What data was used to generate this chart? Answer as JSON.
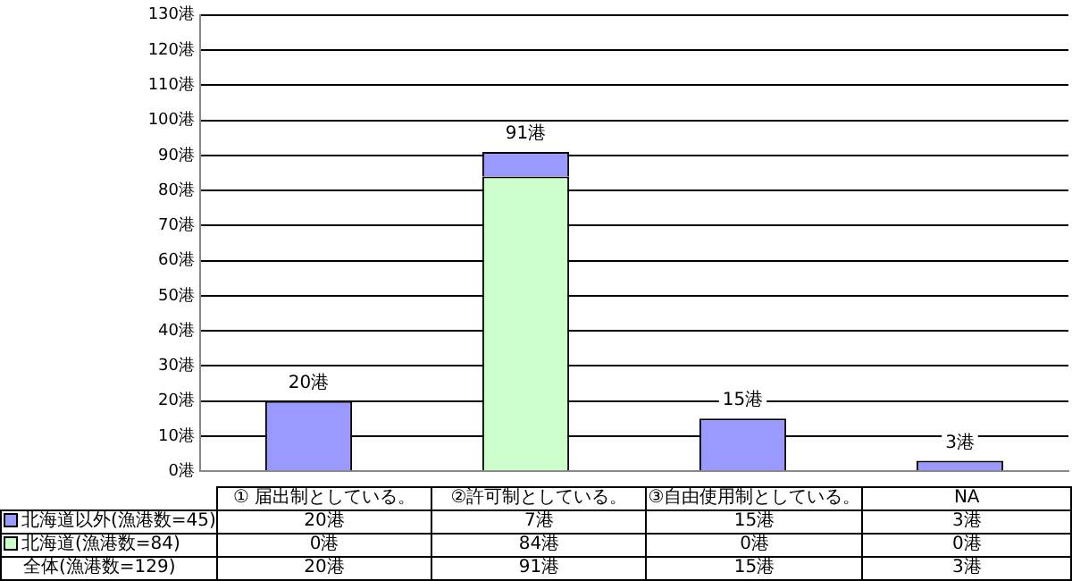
{
  "chart_data": {
    "type": "bar",
    "stacked": true,
    "categories": [
      "① 届出制としている。",
      "②許可制としている。",
      "③自由使用制としている。",
      "NA"
    ],
    "series": [
      {
        "name": "北海道(漁港数=84)",
        "color": "#ccffcc",
        "values": [
          0,
          84,
          0,
          0
        ],
        "value_labels": [
          "0港",
          "84港",
          "0港",
          "0港"
        ]
      },
      {
        "name": "北海道以外(漁港数=45)",
        "color": "#9999ff",
        "values": [
          20,
          7,
          15,
          3
        ],
        "value_labels": [
          "20港",
          "7港",
          "15港",
          "3港"
        ]
      }
    ],
    "totals": [
      "20港",
      "91港",
      "15港",
      "3港"
    ],
    "annotations": [
      "全体(漁港数=129)"
    ],
    "ylim": [
      0,
      130
    ],
    "yticks": [
      {
        "value": 0,
        "label": "0港"
      },
      {
        "value": 10,
        "label": "10港"
      },
      {
        "value": 20,
        "label": "20港"
      },
      {
        "value": 30,
        "label": "30港"
      },
      {
        "value": 40,
        "label": "40港"
      },
      {
        "value": 50,
        "label": "50港"
      },
      {
        "value": 60,
        "label": "60港"
      },
      {
        "value": 70,
        "label": "70港"
      },
      {
        "value": 80,
        "label": "80港"
      },
      {
        "value": 90,
        "label": "90港"
      },
      {
        "value": 100,
        "label": "100港"
      },
      {
        "value": 110,
        "label": "110港"
      },
      {
        "value": 120,
        "label": "120港"
      },
      {
        "value": 130,
        "label": "130港"
      }
    ],
    "grid": "y",
    "legend": "bottom"
  }
}
